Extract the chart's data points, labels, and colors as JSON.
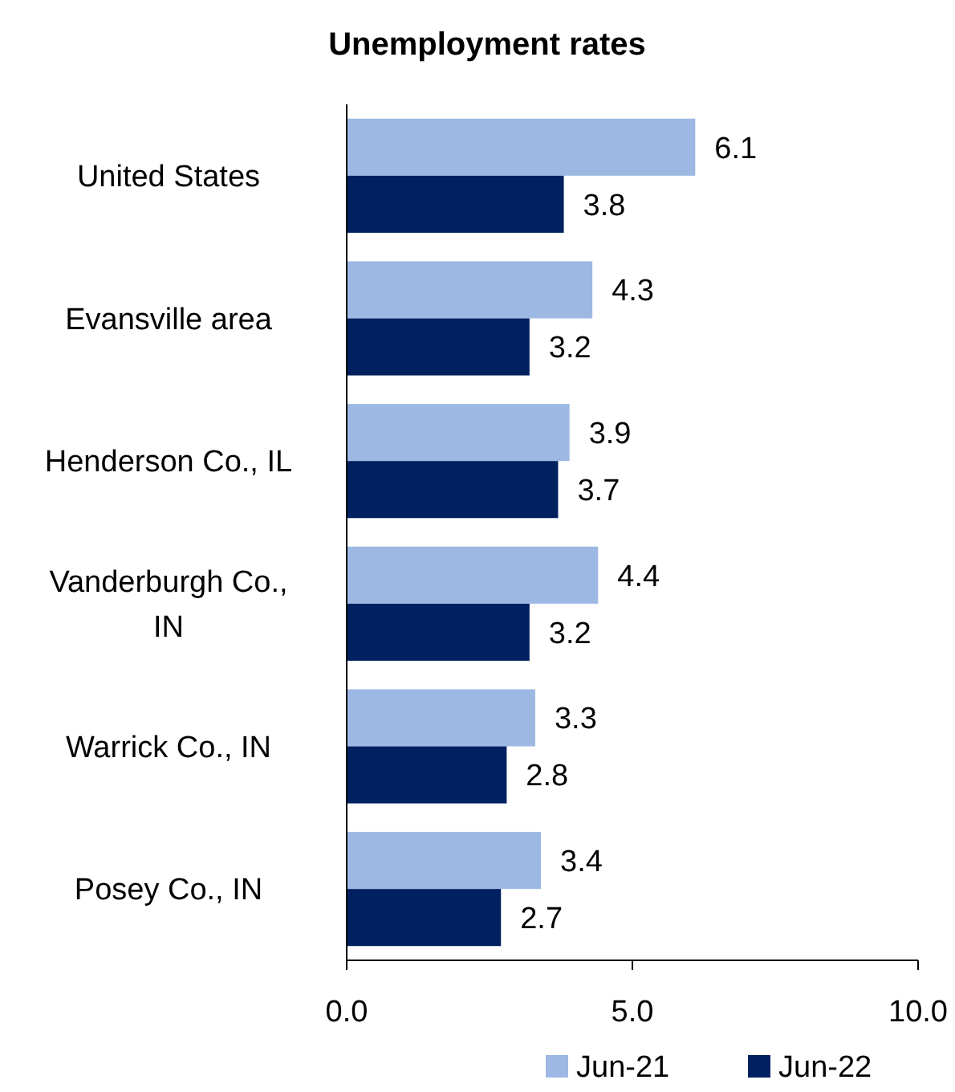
{
  "chart_data": {
    "type": "bar",
    "orientation": "horizontal",
    "title": "Unemployment rates",
    "categories": [
      "United States",
      "Evansville area",
      "Henderson Co., IL",
      "Vanderburgh Co., IN",
      "Warrick Co., IN",
      "Posey Co., IN"
    ],
    "series": [
      {
        "name": "Jun-21",
        "color": "#9db9e3",
        "values": [
          6.1,
          4.3,
          3.9,
          4.4,
          3.3,
          3.4
        ]
      },
      {
        "name": "Jun-22",
        "color": "#002060",
        "values": [
          3.8,
          3.2,
          3.7,
          3.2,
          2.8,
          2.7
        ]
      }
    ],
    "xlim": [
      0,
      10
    ],
    "xticks": [
      {
        "value": 0,
        "label": "0.0"
      },
      {
        "value": 5,
        "label": "5.0"
      },
      {
        "value": 10,
        "label": "10.0"
      }
    ],
    "data_labels": true,
    "grid": false,
    "legend": "bottom"
  }
}
